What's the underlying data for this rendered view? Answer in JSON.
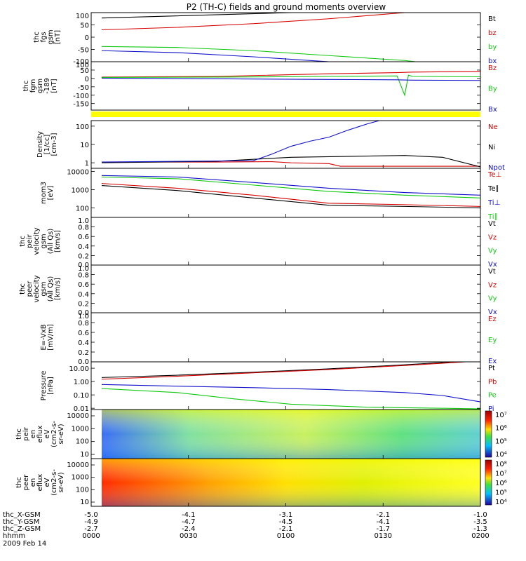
{
  "title": "P2 (TH-C) fields and ground moments overview",
  "date_label": "2009 Feb 14",
  "colors": {
    "black": "#000000",
    "red": "#d40000",
    "green": "#10c810",
    "blue": "#1010c8",
    "yellow": "#ffff00"
  },
  "chart_data": [
    {
      "type": "line",
      "ylabel": [
        "thc",
        "fgs",
        "gsm",
        "[nT]"
      ],
      "yticks": [
        "100",
        "50",
        "0",
        "-50",
        "-100"
      ],
      "ylim": [
        -100,
        100
      ],
      "legend": [
        "Bt",
        "bz",
        "by",
        "bx"
      ],
      "series": [
        {
          "name": "Bt",
          "color": "black",
          "x": [
            0,
            0.5,
            1
          ],
          "y": [
            78,
            100,
            130
          ]
        },
        {
          "name": "bz",
          "color": "red",
          "x": [
            0,
            0.2,
            0.4,
            0.6,
            0.8,
            1
          ],
          "y": [
            30,
            40,
            55,
            75,
            100,
            140
          ]
        },
        {
          "name": "by",
          "color": "green",
          "x": [
            0,
            0.2,
            0.4,
            0.6,
            0.8,
            1
          ],
          "y": [
            -38,
            -42,
            -55,
            -75,
            -95,
            -130
          ]
        },
        {
          "name": "bx",
          "color": "blue",
          "x": [
            0,
            0.2,
            0.4,
            0.6,
            0.8,
            1
          ],
          "y": [
            -55,
            -63,
            -80,
            -100,
            -120,
            -150
          ]
        }
      ]
    },
    {
      "type": "line",
      "ylabel": [
        "thc",
        "fgm",
        "gsm",
        "-189",
        "[nT]"
      ],
      "yticks": [
        "100",
        "50",
        "0",
        "-50",
        "-100",
        "-150"
      ],
      "ylim": [
        -189,
        100
      ],
      "legend": [
        "Bz",
        "By",
        "Bx"
      ],
      "series": [
        {
          "name": "Bz",
          "color": "red",
          "x": [
            0,
            0.3,
            0.6,
            0.78,
            0.82,
            1
          ],
          "y": [
            8,
            12,
            28,
            35,
            38,
            42
          ]
        },
        {
          "name": "By",
          "color": "green",
          "x": [
            0,
            0.3,
            0.6,
            0.78,
            0.8,
            0.81,
            0.82,
            1
          ],
          "y": [
            6,
            8,
            12,
            15,
            -100,
            20,
            12,
            10
          ]
        },
        {
          "name": "Bx",
          "color": "blue",
          "x": [
            0,
            0.3,
            0.6,
            0.78,
            0.82,
            1
          ],
          "y": [
            2,
            -2,
            -6,
            -8,
            -10,
            -12
          ]
        }
      ]
    },
    {
      "type": "line",
      "log": true,
      "ylabel": [
        "Density",
        "[1/cc]",
        "[cm-3]"
      ],
      "yticks": [
        "100",
        "10",
        "1"
      ],
      "ylim": [
        0.5,
        200
      ],
      "legend": [
        "Ne",
        "Ni",
        "Npot"
      ],
      "series": [
        {
          "name": "Ne",
          "color": "red",
          "x": [
            0,
            0.3,
            0.45,
            0.5,
            0.6,
            0.63,
            1
          ],
          "y": [
            1.1,
            1.1,
            1.15,
            1.0,
            0.9,
            0.65,
            0.65
          ]
        },
        {
          "name": "Ni",
          "color": "black",
          "x": [
            0,
            0.3,
            0.5,
            0.8,
            0.9,
            1
          ],
          "y": [
            1.0,
            1.2,
            2.0,
            2.5,
            2.0,
            0.6
          ]
        },
        {
          "name": "Npot",
          "color": "blue",
          "x": [
            0,
            0.4,
            0.45,
            0.5,
            0.55,
            0.6,
            0.65,
            0.7,
            0.75
          ],
          "y": [
            1.1,
            1.3,
            3.0,
            8.0,
            15,
            25,
            60,
            130,
            250
          ]
        }
      ]
    },
    {
      "type": "line",
      "log": true,
      "ylabel": [
        "mom3",
        "[eV]"
      ],
      "yticks": [
        "10000",
        "1000",
        "100"
      ],
      "ylim": [
        30,
        15000
      ],
      "legend": [
        "Te⊥",
        "Te∥",
        "Ti⊥",
        "Ti∥"
      ],
      "series": [
        {
          "name": "Te⊥",
          "color": "red",
          "x": [
            0,
            0.2,
            0.4,
            0.6,
            0.8,
            1
          ],
          "y": [
            2200,
            1200,
            500,
            180,
            150,
            120
          ]
        },
        {
          "name": "Te∥",
          "color": "black",
          "x": [
            0,
            0.2,
            0.4,
            0.6,
            0.8,
            1
          ],
          "y": [
            1700,
            900,
            350,
            140,
            120,
            100
          ]
        },
        {
          "name": "Ti⊥",
          "color": "blue",
          "x": [
            0,
            0.2,
            0.4,
            0.6,
            0.8,
            1
          ],
          "y": [
            6000,
            5000,
            2500,
            1200,
            700,
            500
          ]
        },
        {
          "name": "Ti∥",
          "color": "green",
          "x": [
            0,
            0.2,
            0.4,
            0.6,
            0.8,
            1
          ],
          "y": [
            5000,
            4000,
            1800,
            800,
            500,
            350
          ]
        }
      ]
    },
    {
      "type": "line",
      "ylabel": [
        "thc",
        "peir",
        "velocity",
        "gsm",
        "(All Qs)",
        "[km/s]"
      ],
      "yticks": [
        "1.0",
        "0.8",
        "0.6",
        "0.4",
        "0.2",
        "0.0"
      ],
      "ylim": [
        0,
        1
      ],
      "legend": [
        "Vt",
        "Vz",
        "Vy",
        "Vx"
      ],
      "series": []
    },
    {
      "type": "line",
      "ylabel": [
        "thc",
        "peer",
        "velocity",
        "gsm",
        "(All Qs)",
        "[km/s]"
      ],
      "yticks": [
        "1.0",
        "0.8",
        "0.6",
        "0.4",
        "0.2",
        "0.0"
      ],
      "ylim": [
        0,
        1
      ],
      "legend": [
        "Vt",
        "Vz",
        "Vy",
        "Vx"
      ],
      "series": []
    },
    {
      "type": "line",
      "ylabel": [
        "E=-VxB",
        "[mV/m]"
      ],
      "yticks": [
        "1.0",
        "0.8",
        "0.6",
        "0.4",
        "0.2",
        "0.0"
      ],
      "ylim": [
        0,
        1
      ],
      "legend": [
        "Ez",
        "Ey",
        "Ex"
      ],
      "series": []
    },
    {
      "type": "line",
      "log": true,
      "ylabel": [
        "Pressure",
        "[nPa]"
      ],
      "yticks": [
        "10.00",
        "1.00",
        "0.10",
        "0.01"
      ],
      "ylim": [
        0.008,
        30
      ],
      "legend": [
        "Pt",
        "Pb",
        "Pe",
        "Pi"
      ],
      "series": [
        {
          "name": "Pt",
          "color": "black",
          "x": [
            0,
            0.2,
            0.4,
            0.6,
            0.8,
            1
          ],
          "y": [
            2.0,
            3.0,
            5.0,
            9.0,
            18,
            40
          ]
        },
        {
          "name": "Pb",
          "color": "red",
          "x": [
            0,
            0.2,
            0.4,
            0.6,
            0.8,
            1
          ],
          "y": [
            1.5,
            2.5,
            4.5,
            8.0,
            16,
            35
          ]
        },
        {
          "name": "Pe",
          "color": "green",
          "x": [
            0,
            0.2,
            0.35,
            0.5,
            0.7,
            0.9,
            1
          ],
          "y": [
            0.3,
            0.15,
            0.05,
            0.02,
            0.012,
            0.01,
            0.009
          ]
        },
        {
          "name": "Pi",
          "color": "blue",
          "x": [
            0,
            0.2,
            0.4,
            0.6,
            0.8,
            0.9,
            1
          ],
          "y": [
            0.6,
            0.45,
            0.35,
            0.25,
            0.15,
            0.09,
            0.03
          ]
        }
      ]
    },
    {
      "type": "heatmap",
      "ylabel": [
        "thc",
        "peir",
        "en",
        "eflux",
        "eV",
        "(cm2-s-",
        "sr-eV)"
      ],
      "yticks": [
        "10000",
        "1000",
        "100",
        "10"
      ],
      "colorbar": [
        "10⁷",
        "10⁶",
        "10⁵",
        "10⁴"
      ]
    },
    {
      "type": "heatmap",
      "ylabel": [
        "thc",
        "peer",
        "en",
        "eflux",
        "eV",
        "(cm2-s-",
        "sr-eV)"
      ],
      "yticks": [
        "10000",
        "1000",
        "100",
        "10"
      ],
      "colorbar": [
        "10⁸",
        "10⁷",
        "10⁶",
        "10⁵",
        "10⁴"
      ]
    }
  ],
  "xaxis": {
    "rows": [
      {
        "label": "thc_X-GSM",
        "values": [
          "-5.0",
          "-4.1",
          "-3.1",
          "-2.1",
          "-1.0"
        ]
      },
      {
        "label": "thc_Y-GSM",
        "values": [
          "-4.9",
          "-4.7",
          "-4.5",
          "-4.1",
          "-3.5"
        ]
      },
      {
        "label": "thc_Z-GSM",
        "values": [
          "-2.7",
          "-2.4",
          "-2.1",
          "-1.7",
          "-1.3"
        ]
      },
      {
        "label": "hhmm",
        "values": [
          "0000",
          "0030",
          "0100",
          "0130",
          "0200"
        ]
      }
    ]
  }
}
